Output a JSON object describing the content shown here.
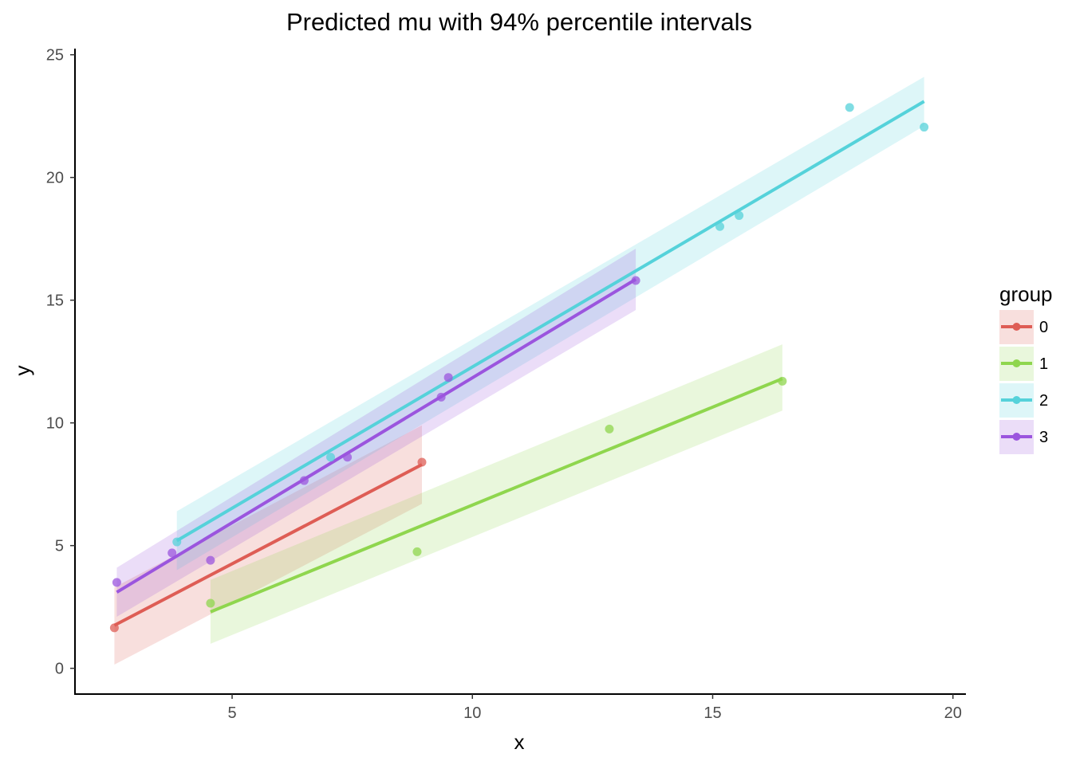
{
  "chart_data": {
    "type": "line",
    "title": "Predicted mu with 94% percentile intervals",
    "xlabel": "x",
    "ylabel": "y",
    "xlim": [
      1.73,
      20.27
    ],
    "ylim": [
      -1.05,
      25.25
    ],
    "x_ticks": [
      5,
      10,
      15,
      20
    ],
    "y_ticks": [
      0,
      5,
      10,
      15,
      20,
      25
    ],
    "grid": false,
    "legend": {
      "title": "group",
      "position": "right"
    },
    "series": [
      {
        "name": "0",
        "color": "#de5d55",
        "points": [
          [
            2.55,
            1.65
          ],
          [
            8.95,
            8.4
          ]
        ],
        "line": [
          [
            2.55,
            1.75
          ],
          [
            8.95,
            8.3
          ]
        ],
        "band": [
          [
            2.55,
            0.15,
            3.3
          ],
          [
            8.95,
            6.7,
            9.9
          ]
        ]
      },
      {
        "name": "1",
        "color": "#8fd64e",
        "points": [
          [
            4.55,
            2.65
          ],
          [
            8.85,
            4.75
          ],
          [
            12.85,
            9.75
          ],
          [
            16.45,
            11.7
          ]
        ],
        "line": [
          [
            4.55,
            2.3
          ],
          [
            16.45,
            11.8
          ]
        ],
        "band": [
          [
            4.55,
            1.0,
            3.6
          ],
          [
            16.45,
            10.5,
            13.2
          ]
        ]
      },
      {
        "name": "2",
        "color": "#55d2da",
        "points": [
          [
            3.85,
            5.15
          ],
          [
            7.05,
            8.6
          ],
          [
            15.15,
            18.0
          ],
          [
            15.55,
            18.45
          ],
          [
            17.85,
            22.85
          ],
          [
            19.4,
            22.05
          ]
        ],
        "line": [
          [
            3.85,
            5.2
          ],
          [
            19.4,
            23.1
          ]
        ],
        "band": [
          [
            3.85,
            4.0,
            6.4
          ],
          [
            19.4,
            22.1,
            24.1
          ]
        ]
      },
      {
        "name": "3",
        "color": "#9b55de",
        "points": [
          [
            2.6,
            3.5
          ],
          [
            3.75,
            4.7
          ],
          [
            4.55,
            4.4
          ],
          [
            6.5,
            7.65
          ],
          [
            7.4,
            8.6
          ],
          [
            9.35,
            11.05
          ],
          [
            9.5,
            11.85
          ],
          [
            13.4,
            15.8
          ]
        ],
        "line": [
          [
            2.6,
            3.1
          ],
          [
            13.4,
            15.85
          ]
        ],
        "band": [
          [
            2.6,
            2.1,
            4.1
          ],
          [
            13.4,
            14.6,
            17.1
          ]
        ]
      }
    ]
  }
}
